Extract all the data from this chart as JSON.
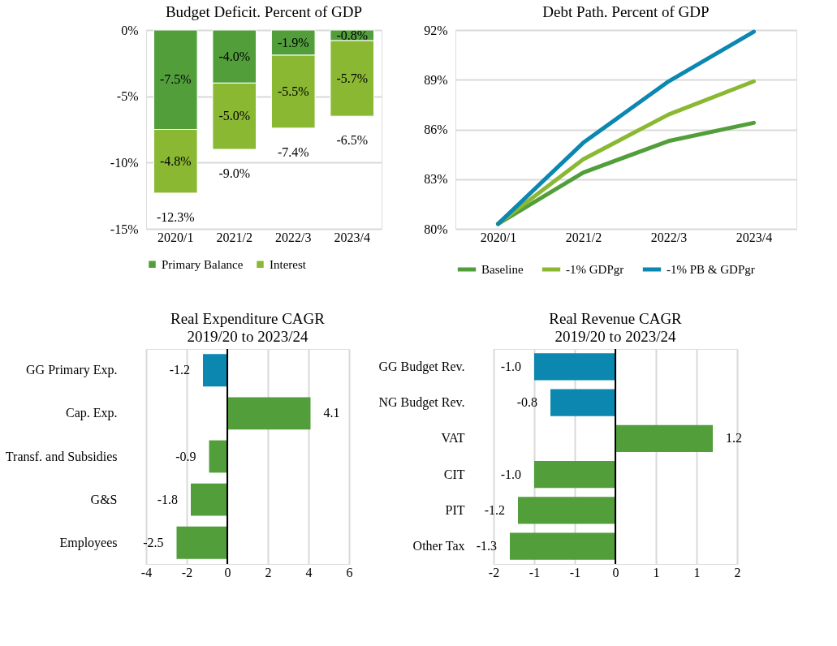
{
  "chart_data": [
    {
      "type": "bar",
      "title": "Budget Deficit. Percent of GDP",
      "categories": [
        "2020/1",
        "2021/2",
        "2022/3",
        "2023/4"
      ],
      "stacked": true,
      "series": [
        {
          "name": "Primary Balance",
          "color": "#529e3b",
          "values": [
            -7.5,
            -4.0,
            -1.9,
            -0.8
          ],
          "value_labels": [
            "-7.5%",
            "-4.0%",
            "-1.9%",
            "-0.8%"
          ]
        },
        {
          "name": "Interest",
          "color": "#8ab833",
          "values": [
            -4.8,
            -5.0,
            -5.5,
            -5.7
          ],
          "value_labels": [
            "-4.8%",
            "-5.0%",
            "-5.5%",
            "-5.7%"
          ]
        }
      ],
      "totals": [
        "-12.3%",
        "-9.0%",
        "-7.4%",
        "-6.5%"
      ],
      "ylim": [
        -15,
        0
      ],
      "yticks": [
        {
          "value": -15,
          "label": "-15%"
        },
        {
          "value": -10,
          "label": "-10%"
        },
        {
          "value": -5,
          "label": "-5%"
        },
        {
          "value": 0,
          "label": "0%"
        }
      ],
      "grid": "y",
      "legend": "bottom"
    },
    {
      "type": "line",
      "title": "Debt Path. Percent of GDP",
      "categories": [
        "2020/1",
        "2021/2",
        "2022/3",
        "2023/4"
      ],
      "series": [
        {
          "name": "Baseline",
          "color": "#529e3b",
          "values": [
            80.3,
            83.4,
            85.3,
            86.4
          ]
        },
        {
          "name": "-1% GDPgr",
          "color": "#8ab833",
          "values": [
            80.3,
            84.2,
            86.9,
            88.9
          ]
        },
        {
          "name": "-1% PB & GDPgr",
          "color": "#0b87b0",
          "values": [
            80.3,
            85.2,
            88.9,
            91.9
          ]
        }
      ],
      "ylim": [
        80,
        92
      ],
      "yticks": [
        {
          "value": 80,
          "label": "80%"
        },
        {
          "value": 83,
          "label": "83%"
        },
        {
          "value": 86,
          "label": "86%"
        },
        {
          "value": 89,
          "label": "89%"
        },
        {
          "value": 92,
          "label": "92%"
        }
      ],
      "grid": "y",
      "legend": "bottom",
      "line_style": "solid",
      "marker": "none"
    },
    {
      "type": "bar",
      "orientation": "horizontal",
      "title": "Real Expenditure CAGR",
      "subtitle": "2019/20 to 2023/24",
      "categories": [
        "GG Primary Exp.",
        "Cap. Exp.",
        "Transf. and Subsidies",
        "G&S",
        "Employees"
      ],
      "values": [
        -1.2,
        4.1,
        -0.9,
        -1.8,
        -2.5
      ],
      "value_labels": [
        "-1.2",
        "4.1",
        "-0.9",
        "-1.8",
        "-2.5"
      ],
      "colors": [
        "#0b87b0",
        "#529e3b",
        "#529e3b",
        "#529e3b",
        "#529e3b"
      ],
      "xlim": [
        -4,
        6
      ],
      "xticks": [
        -4,
        -2,
        0,
        2,
        4,
        6
      ],
      "grid": "x",
      "ref_lines": [
        {
          "axis": "x",
          "value": 0,
          "color": "#000000"
        }
      ]
    },
    {
      "type": "bar",
      "orientation": "horizontal",
      "title": "Real Revenue CAGR",
      "subtitle": "2019/20 to 2023/24",
      "categories": [
        "GG Budget Rev.",
        "NG Budget Rev.",
        "VAT",
        "CIT",
        "PIT",
        "Other Tax"
      ],
      "values": [
        -1.0,
        -0.8,
        1.2,
        -1.0,
        -1.2,
        -1.3
      ],
      "value_labels": [
        "-1.0",
        "-0.8",
        "1.2",
        "-1.0",
        "-1.2",
        "-1.3"
      ],
      "colors": [
        "#0b87b0",
        "#0b87b0",
        "#529e3b",
        "#529e3b",
        "#529e3b",
        "#529e3b"
      ],
      "xlim": [
        -1.5,
        1.5
      ],
      "xticks": [
        {
          "value": -1.5,
          "label": "-2"
        },
        {
          "value": -1,
          "label": "-1"
        },
        {
          "value": -0.5,
          "label": "-1"
        },
        0,
        {
          "value": 0.5,
          "label": "1"
        },
        {
          "value": 1,
          "label": "1"
        },
        {
          "value": 1.5,
          "label": "2"
        }
      ],
      "grid": "x",
      "ref_lines": [
        {
          "axis": "x",
          "value": 0,
          "color": "#000000"
        }
      ]
    }
  ]
}
